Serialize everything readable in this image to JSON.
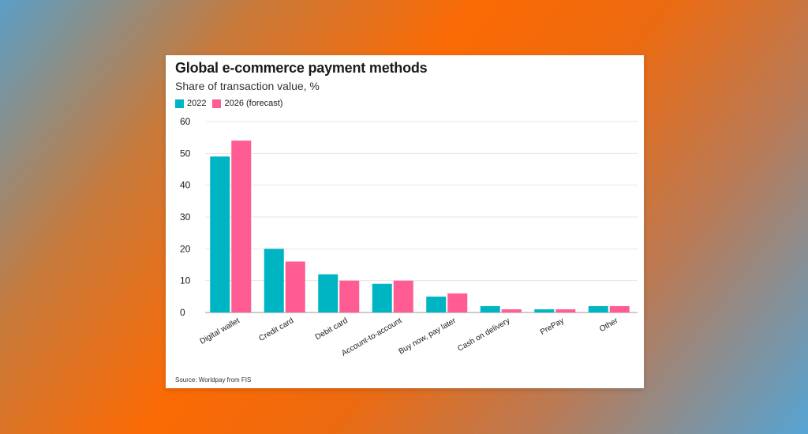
{
  "card": {
    "title": "Global e-commerce payment methods",
    "subtitle": "Share of transaction value, %",
    "source": "Source: Worldpay from FIS"
  },
  "legend": [
    {
      "label": "2022",
      "color": "#00b5c3"
    },
    {
      "label": "2026 (forecast)",
      "color": "#ff5c93"
    }
  ],
  "chart_data": {
    "type": "bar",
    "title": "Global e-commerce payment methods",
    "subtitle": "Share of transaction value, %",
    "xlabel": "",
    "ylabel": "",
    "ylim": [
      0,
      60
    ],
    "yticks": [
      0,
      10,
      20,
      30,
      40,
      50,
      60
    ],
    "grid": true,
    "legend_position": "top-left",
    "categories": [
      "Digital wallet",
      "Credit card",
      "Debit card",
      "Account-to-account",
      "Buy now, pay later",
      "Cash on delivery",
      "PrePay",
      "Other"
    ],
    "series": [
      {
        "name": "2022",
        "color": "#00b5c3",
        "values": [
          49,
          20,
          12,
          9,
          5,
          2,
          1,
          2
        ]
      },
      {
        "name": "2026 (forecast)",
        "color": "#ff5c93",
        "values": [
          54,
          16,
          10,
          10,
          6,
          1,
          1,
          2
        ]
      }
    ]
  }
}
